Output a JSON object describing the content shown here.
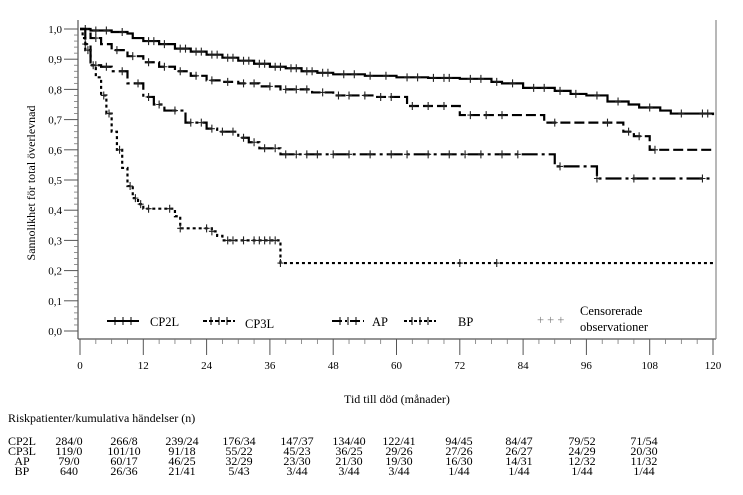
{
  "chart_data": {
    "type": "line",
    "subtype": "kaplan-meier-step",
    "title": "",
    "xlabel": "Tid till död (månader)",
    "ylabel": "Sannolikhet för total överlevnad",
    "xlim": [
      0,
      120
    ],
    "ylim": [
      0.0,
      1.0
    ],
    "x_ticks": [
      0,
      12,
      24,
      36,
      48,
      60,
      72,
      84,
      96,
      108,
      120
    ],
    "x_tick_labels": [
      "0",
      "12",
      "24",
      "36",
      "48",
      "60",
      "72",
      "84",
      "96",
      "108",
      "120"
    ],
    "y_ticks": [
      0.0,
      0.1,
      0.2,
      0.3,
      0.4,
      0.5,
      0.6,
      0.7,
      0.8,
      0.9,
      1.0
    ],
    "y_tick_labels": [
      "0,0",
      "0,1",
      "0,2",
      "0,3",
      "0,4",
      "0,5",
      "0,6",
      "0,7",
      "0,8",
      "0,9",
      "1,0"
    ],
    "grid": false,
    "legend_position": "bottom-inside",
    "series": [
      {
        "name": "CP2L",
        "dash": "solid",
        "steps": [
          [
            0,
            1.0
          ],
          [
            2,
            0.995
          ],
          [
            6,
            0.99
          ],
          [
            9,
            0.985
          ],
          [
            10,
            0.97
          ],
          [
            12,
            0.96
          ],
          [
            15,
            0.95
          ],
          [
            18,
            0.935
          ],
          [
            21,
            0.925
          ],
          [
            24,
            0.915
          ],
          [
            27,
            0.905
          ],
          [
            30,
            0.895
          ],
          [
            33,
            0.885
          ],
          [
            36,
            0.875
          ],
          [
            39,
            0.87
          ],
          [
            42,
            0.86
          ],
          [
            45,
            0.855
          ],
          [
            48,
            0.85
          ],
          [
            54,
            0.845
          ],
          [
            60,
            0.84
          ],
          [
            66,
            0.838
          ],
          [
            72,
            0.835
          ],
          [
            78,
            0.825
          ],
          [
            80,
            0.82
          ],
          [
            84,
            0.805
          ],
          [
            90,
            0.795
          ],
          [
            93,
            0.785
          ],
          [
            96,
            0.78
          ],
          [
            100,
            0.76
          ],
          [
            104,
            0.75
          ],
          [
            106,
            0.74
          ],
          [
            110,
            0.73
          ],
          [
            112,
            0.72
          ],
          [
            120,
            0.715
          ]
        ],
        "censored": [
          3,
          5,
          8,
          13,
          14,
          16,
          19,
          20,
          22,
          23,
          25,
          26,
          28,
          29,
          31,
          32,
          34,
          35,
          37,
          38,
          40,
          41,
          43,
          44,
          46,
          47,
          50,
          52,
          55,
          58,
          62,
          64,
          67,
          69,
          70,
          74,
          76,
          79,
          82,
          86,
          88,
          91,
          94,
          98,
          102,
          108,
          114,
          118,
          119
        ]
      },
      {
        "name": "CP3L",
        "dash": "dashed-dot",
        "steps": [
          [
            0,
            1.0
          ],
          [
            2,
            0.97
          ],
          [
            4,
            0.95
          ],
          [
            6,
            0.93
          ],
          [
            9,
            0.91
          ],
          [
            12,
            0.89
          ],
          [
            15,
            0.875
          ],
          [
            18,
            0.86
          ],
          [
            21,
            0.845
          ],
          [
            24,
            0.83
          ],
          [
            27,
            0.825
          ],
          [
            30,
            0.82
          ],
          [
            34,
            0.81
          ],
          [
            38,
            0.8
          ],
          [
            44,
            0.79
          ],
          [
            48,
            0.78
          ],
          [
            56,
            0.775
          ],
          [
            62,
            0.745
          ],
          [
            72,
            0.715
          ],
          [
            88,
            0.69
          ],
          [
            103,
            0.66
          ],
          [
            105,
            0.645
          ],
          [
            108,
            0.6
          ],
          [
            120,
            0.6
          ]
        ],
        "censored": [
          1,
          3,
          7,
          10,
          13,
          16,
          19,
          22,
          25,
          28,
          31,
          33,
          36,
          39,
          41,
          43,
          46,
          49,
          51,
          54,
          57,
          59,
          63,
          66,
          69,
          74,
          77,
          80,
          90,
          100,
          104,
          106,
          109
        ]
      },
      {
        "name": "AP",
        "dash": "long-dash-dot",
        "steps": [
          [
            0,
            1.0
          ],
          [
            1,
            0.95
          ],
          [
            2,
            0.88
          ],
          [
            4,
            0.875
          ],
          [
            6,
            0.86
          ],
          [
            9,
            0.82
          ],
          [
            12,
            0.775
          ],
          [
            14,
            0.75
          ],
          [
            16,
            0.73
          ],
          [
            20,
            0.69
          ],
          [
            24,
            0.67
          ],
          [
            26,
            0.66
          ],
          [
            30,
            0.64
          ],
          [
            32,
            0.625
          ],
          [
            34,
            0.605
          ],
          [
            38,
            0.585
          ],
          [
            90,
            0.545
          ],
          [
            98,
            0.505
          ],
          [
            120,
            0.505
          ]
        ],
        "censored": [
          1,
          3,
          5,
          8,
          11,
          13,
          15,
          18,
          21,
          23,
          25,
          27,
          29,
          31,
          33,
          35,
          37,
          39,
          41,
          43,
          45,
          48,
          51,
          55,
          59,
          62,
          66,
          70,
          73,
          76,
          80,
          83,
          91,
          98,
          105,
          118
        ]
      },
      {
        "name": "BP",
        "dash": "dotted",
        "steps": [
          [
            0,
            1.0
          ],
          [
            0.5,
            0.97
          ],
          [
            1,
            0.93
          ],
          [
            2,
            0.88
          ],
          [
            3,
            0.84
          ],
          [
            4,
            0.78
          ],
          [
            5,
            0.72
          ],
          [
            6,
            0.66
          ],
          [
            7,
            0.6
          ],
          [
            8,
            0.54
          ],
          [
            9,
            0.48
          ],
          [
            10,
            0.44
          ],
          [
            11,
            0.42
          ],
          [
            12,
            0.405
          ],
          [
            18,
            0.38
          ],
          [
            19,
            0.34
          ],
          [
            25,
            0.33
          ],
          [
            26,
            0.315
          ],
          [
            27,
            0.3
          ],
          [
            38,
            0.225
          ],
          [
            120,
            0.225
          ]
        ],
        "censored": [
          1.5,
          2.5,
          4.5,
          5.5,
          7.5,
          9.5,
          10.5,
          11.5,
          13,
          17,
          19,
          24,
          25,
          28,
          29,
          31,
          33,
          34,
          35,
          36,
          37,
          38,
          72,
          79
        ]
      }
    ],
    "legend": {
      "entries": [
        "CP2L",
        "CP3L",
        "AP",
        "BP"
      ],
      "censored_label_line1": "Censorerade",
      "censored_label_line2": "observationer",
      "censored_marker": "+ + +"
    }
  },
  "risk_table": {
    "title": "Riskpatienter/kumulativa händelser (n)",
    "rows": [
      {
        "name": "CP2L",
        "values": [
          "284/0",
          "266/8",
          "239/24",
          "176/34",
          "147/37",
          "134/40",
          "122/41",
          "94/45",
          "84/47",
          "79/52",
          "71/54"
        ]
      },
      {
        "name": "CP3L",
        "values": [
          "119/0",
          "101/10",
          "91/18",
          "55/22",
          "45/23",
          "36/25",
          "29/26",
          "27/26",
          "26/27",
          "24/29",
          "20/30"
        ]
      },
      {
        "name": "AP",
        "values": [
          "79/0",
          "60/17",
          "46/25",
          "32/29",
          "23/30",
          "21/30",
          "19/30",
          "16/30",
          "14/31",
          "12/32",
          "11/32"
        ]
      },
      {
        "name": "BP",
        "values": [
          "640",
          "26/36",
          "21/41",
          "5/43",
          "3/44",
          "3/44",
          "3/44",
          "1/44",
          "1/44",
          "1/44",
          "1/44"
        ]
      }
    ]
  }
}
